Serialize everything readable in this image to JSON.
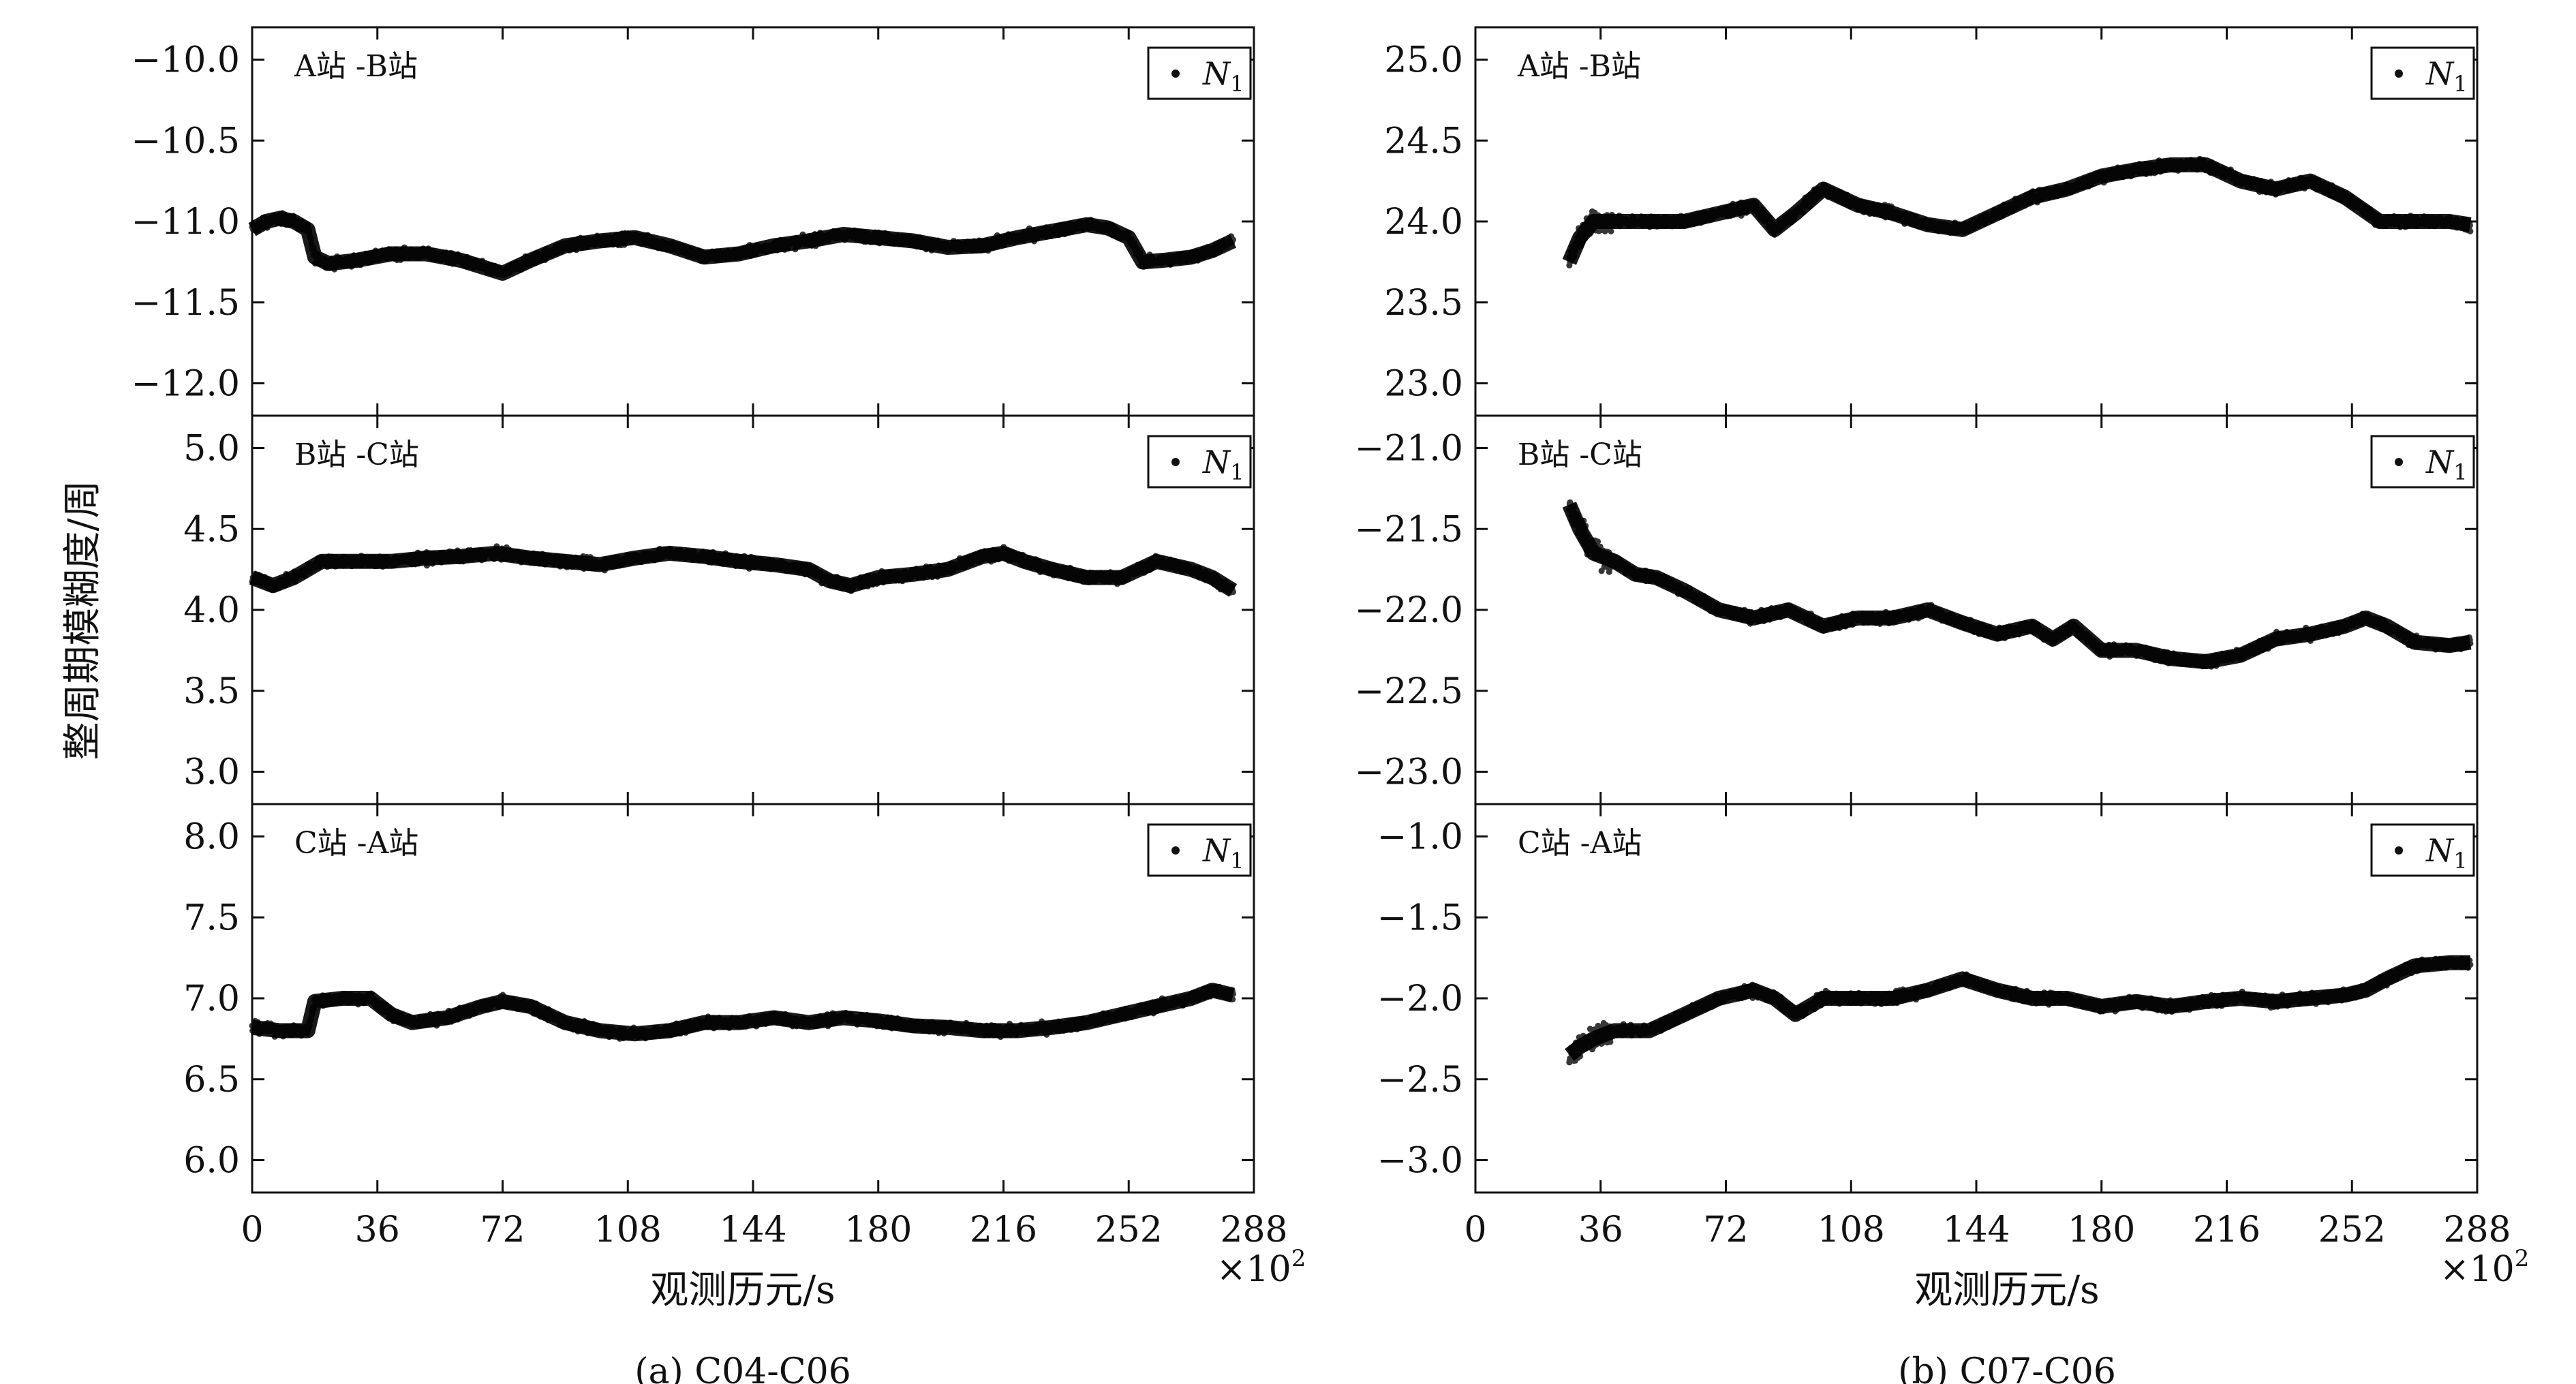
{
  "figure": {
    "y_axis_title": "整周期模糊度/周",
    "x_axis_title": "观测历元/s",
    "x_multiplier": "×10",
    "x_multiplier_exp": "2",
    "legend_symbol": "N",
    "legend_sub": "1"
  },
  "chart_data": [
    {
      "type": "scatter",
      "caption": "(a) C04-C06",
      "panel": "A站 -B站",
      "x_ticks": [
        0,
        36,
        72,
        108,
        144,
        180,
        216,
        252,
        288
      ],
      "xlim": [
        0,
        288
      ],
      "ylim": [
        -12.2,
        -9.8
      ],
      "y_ticks": [
        -10.0,
        -10.5,
        -11.0,
        -11.5,
        -12.0
      ],
      "y_tick_labels": [
        "−10.0",
        "−10.5",
        "−11.0",
        "−11.5",
        "−12.0"
      ],
      "x_range": [
        0,
        282
      ],
      "series": [
        {
          "name": "N1",
          "x": [
            0,
            4,
            8,
            12,
            16,
            18,
            22,
            30,
            40,
            50,
            60,
            66,
            72,
            80,
            90,
            100,
            110,
            120,
            130,
            140,
            150,
            160,
            170,
            180,
            190,
            200,
            210,
            220,
            230,
            240,
            246,
            252,
            256,
            262,
            270,
            276,
            282
          ],
          "y": [
            -11.05,
            -11.0,
            -10.98,
            -11.0,
            -11.05,
            -11.22,
            -11.26,
            -11.24,
            -11.2,
            -11.2,
            -11.24,
            -11.28,
            -11.32,
            -11.24,
            -11.15,
            -11.12,
            -11.1,
            -11.15,
            -11.22,
            -11.2,
            -11.15,
            -11.12,
            -11.08,
            -11.1,
            -11.12,
            -11.16,
            -11.15,
            -11.1,
            -11.06,
            -11.02,
            -11.04,
            -11.1,
            -11.25,
            -11.24,
            -11.22,
            -11.18,
            -11.12
          ]
        }
      ]
    },
    {
      "type": "scatter",
      "caption": "(a) C04-C06",
      "panel": "B站 -C站",
      "x_ticks": [
        0,
        36,
        72,
        108,
        144,
        180,
        216,
        252,
        288
      ],
      "xlim": [
        0,
        288
      ],
      "ylim": [
        2.8,
        5.2
      ],
      "y_ticks": [
        5.0,
        4.5,
        4.0,
        3.5,
        3.0
      ],
      "y_tick_labels": [
        "5.0",
        "4.5",
        "4.0",
        "3.5",
        "3.0"
      ],
      "x_range": [
        0,
        282
      ],
      "series": [
        {
          "name": "N1",
          "x": [
            0,
            6,
            12,
            20,
            30,
            40,
            50,
            60,
            70,
            80,
            90,
            100,
            110,
            120,
            130,
            140,
            150,
            160,
            166,
            172,
            180,
            190,
            200,
            210,
            216,
            222,
            230,
            240,
            250,
            260,
            270,
            276,
            282
          ],
          "y": [
            4.2,
            4.15,
            4.2,
            4.3,
            4.3,
            4.3,
            4.32,
            4.33,
            4.35,
            4.32,
            4.3,
            4.28,
            4.32,
            4.35,
            4.33,
            4.3,
            4.28,
            4.25,
            4.18,
            4.15,
            4.2,
            4.22,
            4.25,
            4.33,
            4.35,
            4.3,
            4.25,
            4.2,
            4.2,
            4.3,
            4.25,
            4.2,
            4.12
          ]
        }
      ]
    },
    {
      "type": "scatter",
      "caption": "(a) C04-C06",
      "panel": "C站 -A站",
      "x_ticks": [
        0,
        36,
        72,
        108,
        144,
        180,
        216,
        252,
        288
      ],
      "xlim": [
        0,
        288
      ],
      "ylim": [
        5.8,
        8.2
      ],
      "y_ticks": [
        8.0,
        7.5,
        7.0,
        6.5,
        6.0
      ],
      "y_tick_labels": [
        "8.0",
        "7.5",
        "7.0",
        "6.5",
        "6.0"
      ],
      "x_range": [
        0,
        282
      ],
      "series": [
        {
          "name": "N1",
          "x": [
            0,
            8,
            16,
            18,
            26,
            34,
            40,
            46,
            56,
            66,
            72,
            80,
            90,
            100,
            110,
            120,
            130,
            140,
            150,
            160,
            170,
            180,
            190,
            200,
            210,
            220,
            230,
            240,
            250,
            260,
            270,
            276,
            282
          ],
          "y": [
            6.82,
            6.8,
            6.8,
            6.98,
            7.0,
            7.0,
            6.9,
            6.85,
            6.88,
            6.95,
            6.98,
            6.95,
            6.85,
            6.8,
            6.78,
            6.8,
            6.85,
            6.85,
            6.88,
            6.85,
            6.88,
            6.86,
            6.83,
            6.82,
            6.8,
            6.8,
            6.82,
            6.85,
            6.9,
            6.95,
            7.0,
            7.05,
            7.02
          ]
        }
      ]
    },
    {
      "type": "scatter",
      "caption": "(b) C07-C06",
      "panel": "A站 -B站",
      "x_ticks": [
        0,
        36,
        72,
        108,
        144,
        180,
        216,
        252,
        288
      ],
      "xlim": [
        0,
        288
      ],
      "ylim": [
        22.8,
        25.2
      ],
      "y_ticks": [
        25.0,
        24.5,
        24.0,
        23.5,
        23.0
      ],
      "y_tick_labels": [
        "25.0",
        "24.5",
        "24.0",
        "23.5",
        "23.0"
      ],
      "x_range": [
        27,
        286
      ],
      "series": [
        {
          "name": "N1",
          "x": [
            27,
            30,
            34,
            40,
            50,
            60,
            70,
            80,
            86,
            92,
            100,
            110,
            120,
            130,
            140,
            150,
            160,
            170,
            180,
            190,
            200,
            210,
            220,
            230,
            240,
            250,
            260,
            270,
            280,
            286
          ],
          "y": [
            23.75,
            23.9,
            24.0,
            24.0,
            24.0,
            24.0,
            24.05,
            24.1,
            23.95,
            24.05,
            24.2,
            24.1,
            24.05,
            23.98,
            23.95,
            24.05,
            24.15,
            24.2,
            24.28,
            24.32,
            24.35,
            24.35,
            24.25,
            24.2,
            24.25,
            24.15,
            24.0,
            24.0,
            24.0,
            23.98
          ]
        }
      ]
    },
    {
      "type": "scatter",
      "caption": "(b) C07-C06",
      "panel": "B站 -C站",
      "x_ticks": [
        0,
        36,
        72,
        108,
        144,
        180,
        216,
        252,
        288
      ],
      "xlim": [
        0,
        288
      ],
      "ylim": [
        -23.2,
        -20.8
      ],
      "y_ticks": [
        -21.0,
        -21.5,
        -22.0,
        -22.5,
        -23.0
      ],
      "y_tick_labels": [
        "−21.0",
        "−21.5",
        "−22.0",
        "−22.5",
        "−23.0"
      ],
      "x_range": [
        27,
        286
      ],
      "series": [
        {
          "name": "N1",
          "x": [
            27,
            30,
            34,
            40,
            46,
            52,
            60,
            70,
            80,
            90,
            100,
            110,
            120,
            130,
            140,
            150,
            160,
            166,
            172,
            180,
            190,
            200,
            210,
            220,
            230,
            240,
            250,
            256,
            262,
            270,
            280,
            286
          ],
          "y": [
            -21.35,
            -21.5,
            -21.65,
            -21.7,
            -21.78,
            -21.8,
            -21.88,
            -22.0,
            -22.05,
            -22.0,
            -22.1,
            -22.05,
            -22.05,
            -22.0,
            -22.08,
            -22.15,
            -22.1,
            -22.18,
            -22.1,
            -22.25,
            -22.25,
            -22.3,
            -22.32,
            -22.28,
            -22.18,
            -22.15,
            -22.1,
            -22.05,
            -22.1,
            -22.2,
            -22.22,
            -22.2
          ]
        }
      ]
    },
    {
      "type": "scatter",
      "caption": "(b) C07-C06",
      "panel": "C站 -A站",
      "x_ticks": [
        0,
        36,
        72,
        108,
        144,
        180,
        216,
        252,
        288
      ],
      "xlim": [
        0,
        288
      ],
      "ylim": [
        -3.2,
        -0.8
      ],
      "y_ticks": [
        -1.0,
        -1.5,
        -2.0,
        -2.5,
        -3.0
      ],
      "y_tick_labels": [
        "−1.0",
        "−1.5",
        "−2.0",
        "−2.5",
        "−3.0"
      ],
      "x_range": [
        27,
        286
      ],
      "series": [
        {
          "name": "N1",
          "x": [
            27,
            30,
            34,
            40,
            50,
            60,
            70,
            80,
            86,
            92,
            100,
            110,
            120,
            130,
            140,
            150,
            160,
            170,
            180,
            190,
            200,
            210,
            220,
            230,
            240,
            250,
            256,
            262,
            270,
            280,
            286
          ],
          "y": [
            -2.35,
            -2.3,
            -2.25,
            -2.2,
            -2.2,
            -2.1,
            -2.0,
            -1.95,
            -2.0,
            -2.1,
            -2.0,
            -2.0,
            -2.0,
            -1.95,
            -1.88,
            -1.95,
            -2.0,
            -2.0,
            -2.05,
            -2.02,
            -2.05,
            -2.02,
            -2.0,
            -2.02,
            -2.0,
            -1.98,
            -1.95,
            -1.88,
            -1.8,
            -1.78,
            -1.78
          ]
        }
      ]
    }
  ]
}
